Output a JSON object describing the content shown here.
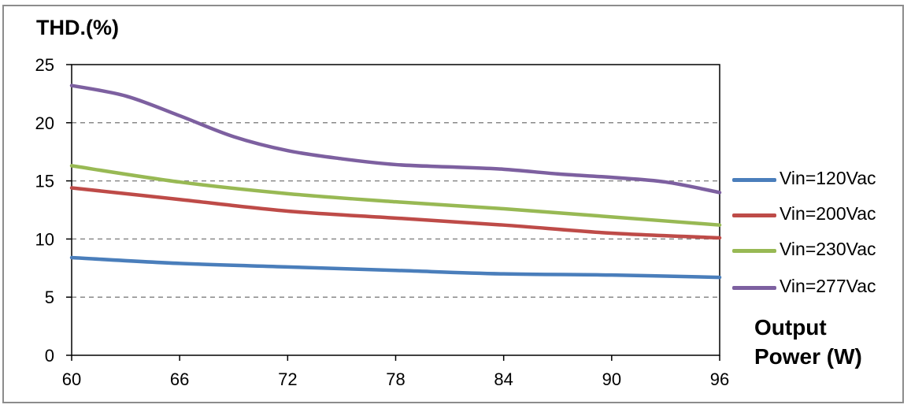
{
  "chart_data": {
    "type": "line",
    "ylabel": "THD.(%)",
    "xlabel_line1": "Output",
    "xlabel_line2": "Power (W)",
    "xlim": [
      60,
      96
    ],
    "ylim": [
      0,
      25
    ],
    "x_ticks": [
      "60",
      "66",
      "72",
      "78",
      "84",
      "90",
      "96"
    ],
    "y_ticks": [
      "0",
      "5",
      "10",
      "15",
      "20",
      "25"
    ],
    "grid": "horizontal dashed",
    "legend_position": "right",
    "series": [
      {
        "name": "Vin=120Vac",
        "color": "#4a7ebb",
        "x": [
          60,
          66,
          72,
          78,
          84,
          90,
          96
        ],
        "y": [
          8.4,
          7.9,
          7.6,
          7.3,
          7.0,
          6.9,
          6.7
        ]
      },
      {
        "name": "Vin=200Vac",
        "color": "#be4b48",
        "x": [
          60,
          66,
          72,
          78,
          84,
          90,
          96
        ],
        "y": [
          14.4,
          13.4,
          12.4,
          11.8,
          11.2,
          10.5,
          10.1
        ]
      },
      {
        "name": "Vin=230Vac",
        "color": "#98b954",
        "x": [
          60,
          66,
          72,
          78,
          84,
          90,
          96
        ],
        "y": [
          16.3,
          14.9,
          13.9,
          13.2,
          12.6,
          11.9,
          11.2
        ]
      },
      {
        "name": "Vin=277Vac",
        "color": "#7d60a0",
        "x": [
          60,
          63,
          66,
          69,
          72,
          75,
          78,
          81,
          84,
          87,
          90,
          93,
          96
        ],
        "y": [
          23.2,
          22.3,
          20.6,
          18.8,
          17.6,
          16.9,
          16.4,
          16.2,
          16.0,
          15.6,
          15.3,
          14.9,
          14.0
        ]
      }
    ]
  }
}
